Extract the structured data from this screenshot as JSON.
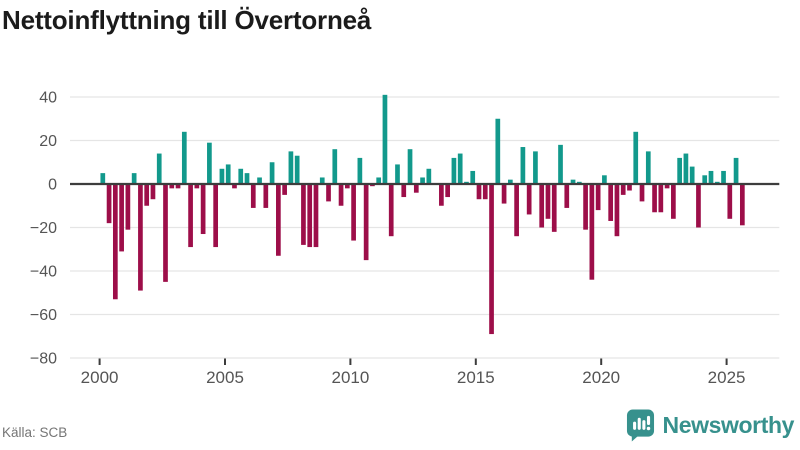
{
  "header": {
    "title": "Nettoinflyttning till Övertorneå"
  },
  "footer": {
    "source": "Källa: SCB",
    "brand": "Newsworthy"
  },
  "colors": {
    "positive": "#12998c",
    "negative": "#9d0e49",
    "zero_line": "#3d3d3d",
    "gridline": "#e5e5e5",
    "axis_text": "#555555",
    "tick_mark": "#3d3d3d",
    "title_text": "#1b1b1b",
    "source_text": "#757575",
    "brand_teal": "#37918d"
  },
  "chart_data": {
    "type": "bar",
    "title": "Nettoinflyttning till Övertorneå",
    "xlabel": "",
    "ylabel": "",
    "frequency": "quarterly",
    "start": "2000-Q1",
    "end": "2025-Q3",
    "ylim": [
      -80,
      45
    ],
    "yticks": [
      40,
      20,
      0,
      -20,
      -40,
      -60,
      -80
    ],
    "xticks": [
      2000,
      2005,
      2010,
      2015,
      2020,
      2025
    ],
    "grid": true,
    "legend": "none",
    "series": [
      {
        "year": 2000,
        "values": [
          5,
          -18,
          -53,
          -31
        ]
      },
      {
        "year": 2001,
        "values": [
          -21,
          5,
          -49,
          -10
        ]
      },
      {
        "year": 2002,
        "values": [
          -7,
          14,
          -45,
          -2
        ]
      },
      {
        "year": 2003,
        "values": [
          -2,
          24,
          -29,
          -2
        ]
      },
      {
        "year": 2004,
        "values": [
          -23,
          19,
          -29,
          7
        ]
      },
      {
        "year": 2005,
        "values": [
          9,
          -2,
          7,
          5
        ]
      },
      {
        "year": 2006,
        "values": [
          -11,
          3,
          -11,
          10
        ]
      },
      {
        "year": 2007,
        "values": [
          -33,
          -5,
          15,
          13
        ]
      },
      {
        "year": 2008,
        "values": [
          -28,
          -29,
          -29,
          3
        ]
      },
      {
        "year": 2009,
        "values": [
          -8,
          16,
          -10,
          -2
        ]
      },
      {
        "year": 2010,
        "values": [
          -26,
          12,
          -35,
          -1
        ]
      },
      {
        "year": 2011,
        "values": [
          3,
          41,
          -24,
          9
        ]
      },
      {
        "year": 2012,
        "values": [
          -6,
          16,
          -4,
          3
        ]
      },
      {
        "year": 2013,
        "values": [
          7,
          0,
          -10,
          -6
        ]
      },
      {
        "year": 2014,
        "values": [
          12,
          14,
          1,
          6
        ]
      },
      {
        "year": 2015,
        "values": [
          -7,
          -7,
          -69,
          30
        ]
      },
      {
        "year": 2016,
        "values": [
          -9,
          2,
          -24,
          17
        ]
      },
      {
        "year": 2017,
        "values": [
          -14,
          15,
          -20,
          -16
        ]
      },
      {
        "year": 2018,
        "values": [
          -22,
          18,
          -11,
          2
        ]
      },
      {
        "year": 2019,
        "values": [
          1,
          -21,
          -44,
          -12
        ]
      },
      {
        "year": 2020,
        "values": [
          4,
          -17,
          -24,
          -5
        ]
      },
      {
        "year": 2021,
        "values": [
          -3,
          24,
          -8,
          15
        ]
      },
      {
        "year": 2022,
        "values": [
          -13,
          -13,
          -2,
          -16
        ]
      },
      {
        "year": 2023,
        "values": [
          12,
          14,
          8,
          -20
        ]
      },
      {
        "year": 2024,
        "values": [
          4,
          6,
          1,
          6
        ]
      },
      {
        "year": 2025,
        "values": [
          -16,
          12,
          -19
        ]
      }
    ]
  }
}
